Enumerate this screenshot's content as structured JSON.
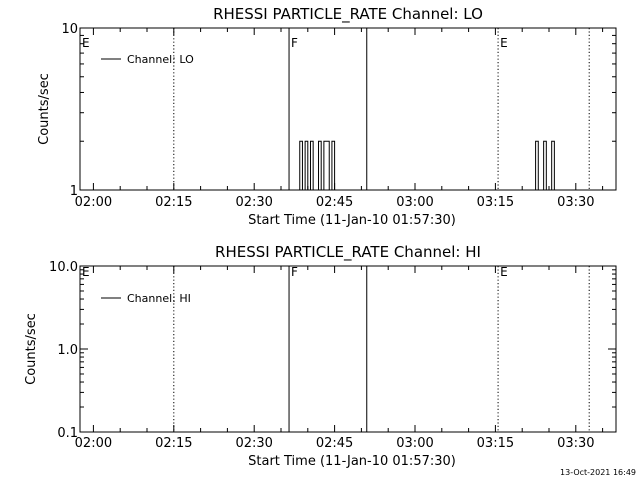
{
  "chart_data": [
    {
      "type": "line",
      "title": "RHESSI PARTICLE_RATE Channel: LO",
      "xlabel": "Start Time (11-Jan-10 01:57:30)",
      "ylabel": "Counts/sec",
      "yscale": "log",
      "xlim": [
        "01:57:30",
        "03:37:30"
      ],
      "ylim": [
        1,
        10
      ],
      "x_ticks": [
        "02:00",
        "02:15",
        "02:30",
        "02:45",
        "03:00",
        "03:15",
        "03:30"
      ],
      "y_ticks": [
        {
          "value": 1,
          "label": "1"
        },
        {
          "value": 10,
          "label": "10"
        }
      ],
      "legend": {
        "label": "Channel: LO",
        "position": "top-left"
      },
      "markers": [
        {
          "time": "01:57:30",
          "label": "E",
          "style": "solid"
        },
        {
          "time": "02:15:00",
          "label": "",
          "style": "dotted"
        },
        {
          "time": "02:36:30",
          "label": "F",
          "style": "solid"
        },
        {
          "time": "02:51:00",
          "label": "",
          "style": "solid"
        },
        {
          "time": "03:15:30",
          "label": "E",
          "style": "dotted"
        },
        {
          "time": "03:32:30",
          "label": "",
          "style": "dotted"
        }
      ],
      "series": [
        {
          "x": [
            "02:38:00",
            "02:38:30",
            "02:39:00",
            "02:39:30",
            "02:40:00",
            "02:40:30",
            "02:41:00",
            "02:41:30",
            "02:42:00",
            "02:42:30",
            "02:43:00",
            "02:43:30",
            "02:44:00",
            "02:44:30",
            "02:45:00"
          ],
          "values": [
            1,
            2,
            1,
            2,
            1,
            2,
            1,
            1,
            2,
            1,
            2,
            2,
            1,
            2,
            1
          ]
        },
        {
          "x": [
            "03:22:00",
            "03:22:30",
            "03:23:00",
            "03:23:30",
            "03:24:00",
            "03:24:30",
            "03:25:00",
            "03:25:30",
            "03:26:00"
          ],
          "values": [
            1,
            2,
            1,
            1,
            2,
            1,
            1,
            2,
            1
          ]
        }
      ]
    },
    {
      "type": "line",
      "title": "RHESSI PARTICLE_RATE Channel: HI",
      "xlabel": "Start Time (11-Jan-10 01:57:30)",
      "ylabel": "Counts/sec",
      "yscale": "log",
      "xlim": [
        "01:57:30",
        "03:37:30"
      ],
      "ylim": [
        0.1,
        10
      ],
      "x_ticks": [
        "02:00",
        "02:15",
        "02:30",
        "02:45",
        "03:00",
        "03:15",
        "03:30"
      ],
      "y_ticks": [
        {
          "value": 0.1,
          "label": "0.1"
        },
        {
          "value": 1,
          "label": "1.0"
        },
        {
          "value": 10,
          "label": "10.0"
        }
      ],
      "legend": {
        "label": "Channel: HI",
        "position": "top-left"
      },
      "markers": [
        {
          "time": "01:57:30",
          "label": "E",
          "style": "solid"
        },
        {
          "time": "02:15:00",
          "label": "",
          "style": "dotted"
        },
        {
          "time": "02:36:30",
          "label": "F",
          "style": "solid"
        },
        {
          "time": "02:51:00",
          "label": "",
          "style": "solid"
        },
        {
          "time": "03:15:30",
          "label": "E",
          "style": "dotted"
        },
        {
          "time": "03:32:30",
          "label": "",
          "style": "dotted"
        }
      ],
      "series": []
    }
  ],
  "footer": {
    "timestamp": "13-Oct-2021 16:49"
  }
}
